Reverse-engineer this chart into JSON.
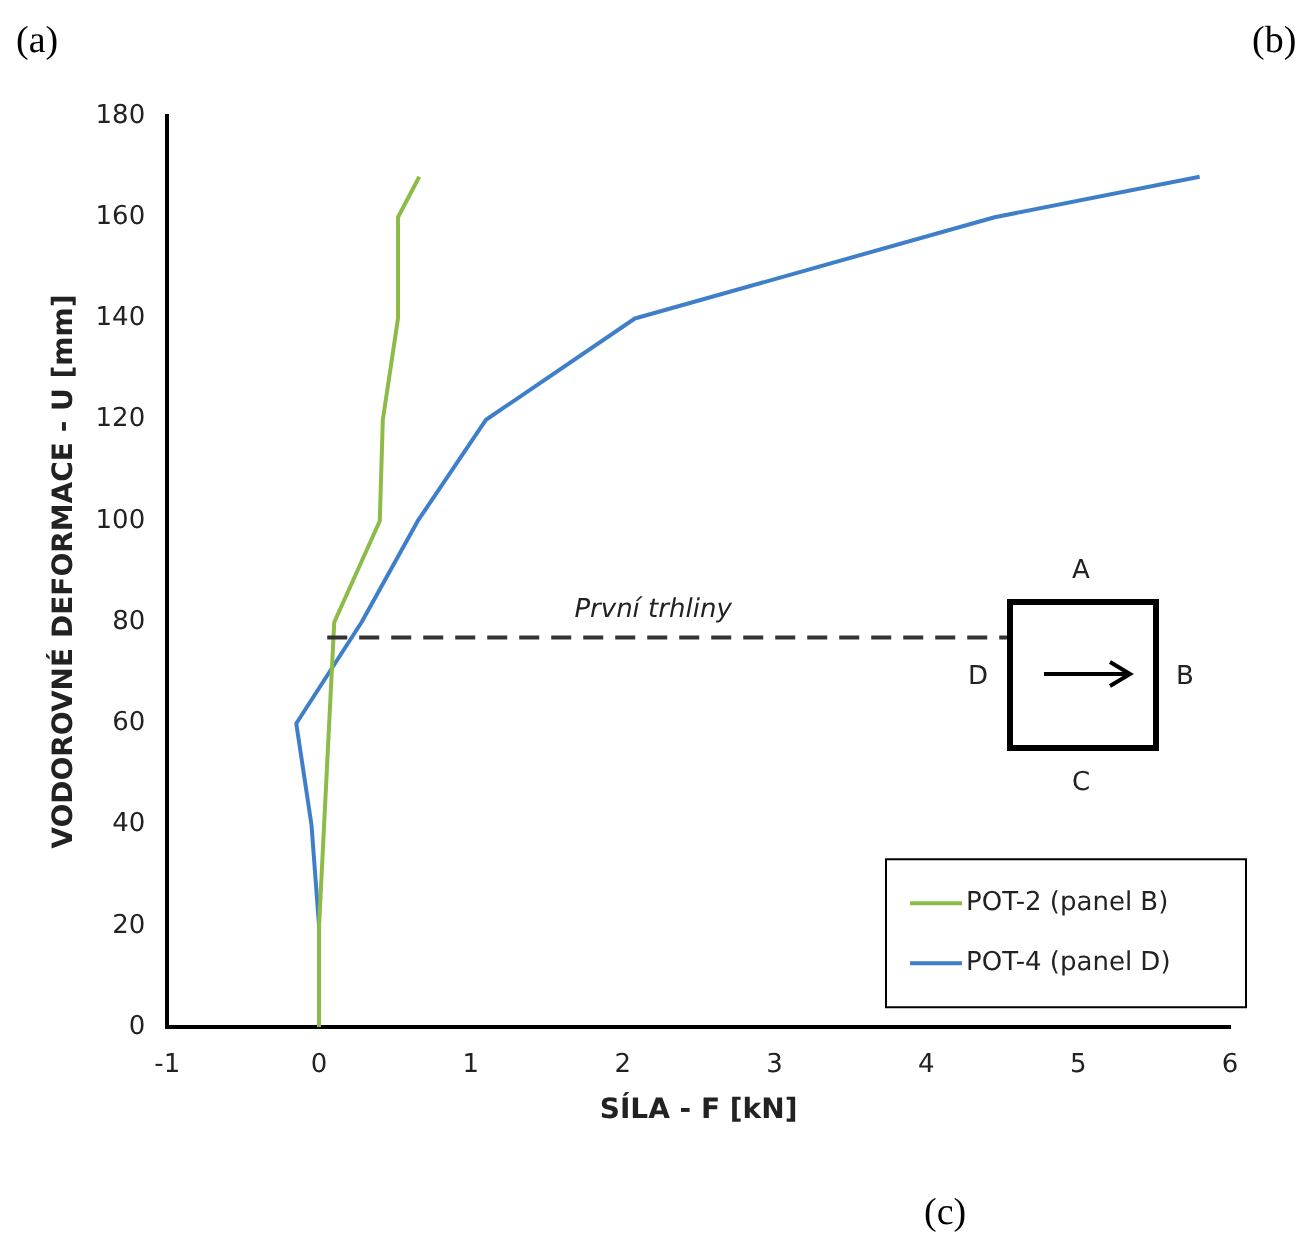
{
  "chart_data": {
    "type": "line",
    "xlabel": "SÍLA - F [kN]",
    "ylabel": "VODOROVNÉ DEFORMACE - U [mm]",
    "xlim": [
      -1,
      6
    ],
    "xticks": [
      -1,
      0,
      1,
      2,
      3,
      4,
      5,
      6
    ],
    "ylim": [
      0,
      180
    ],
    "yticks": [
      0,
      20,
      40,
      60,
      80,
      100,
      120,
      140,
      160,
      180
    ],
    "grid": false,
    "legend": "bottom right",
    "marker": "none",
    "line_style": "solid",
    "series": [
      {
        "name": "POT-2 (panel B)",
        "color": "#8cbb48",
        "x": [
          0,
          0,
          0.1,
          0.4,
          0.42,
          0.52,
          0.52,
          0.66
        ],
        "values": [
          0,
          20,
          80,
          100,
          120,
          140,
          160,
          168
        ]
      },
      {
        "name": "POT-4 (panel D)",
        "color": "#3f7fc9",
        "x": [
          0,
          0,
          -0.05,
          -0.15,
          0.28,
          0.65,
          1.1,
          2.08,
          4.45,
          5.8
        ],
        "values": [
          0,
          20,
          40,
          60,
          80,
          100,
          120,
          140,
          160,
          168
        ]
      }
    ],
    "ref_lines": [
      {
        "axis": "y",
        "value": 77,
        "label": "První trhliny",
        "color": "#333333",
        "line_style": "dashed"
      }
    ],
    "annotations": [
      "(a)",
      "(b)",
      "(c)",
      "A",
      "B",
      "C",
      "D"
    ]
  }
}
